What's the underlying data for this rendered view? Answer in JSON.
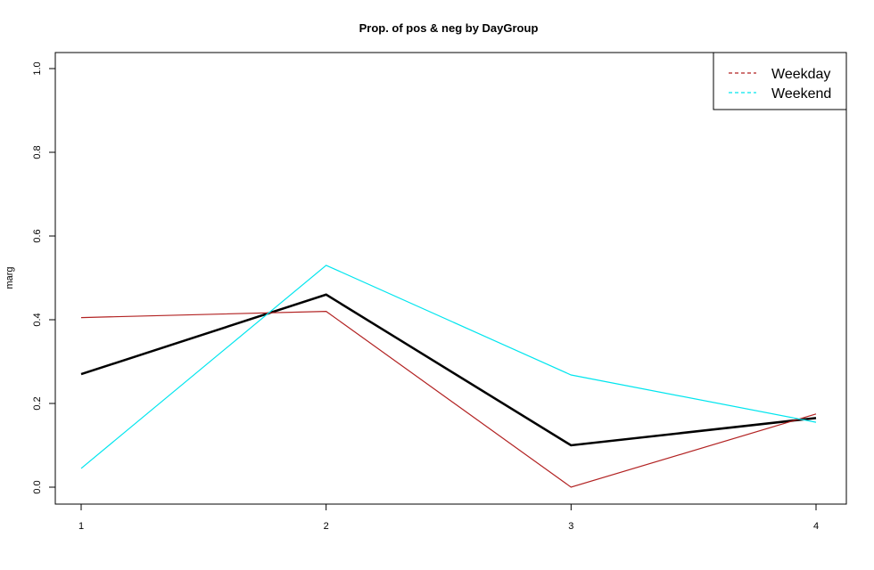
{
  "chart_data": {
    "type": "line",
    "title": "Prop. of pos & neg by DayGroup",
    "xlabel": "",
    "ylabel": "marg",
    "x": [
      1,
      2,
      3,
      4
    ],
    "x_ticks": [
      "1",
      "2",
      "3",
      "4"
    ],
    "xlim": [
      0.9,
      4.1
    ],
    "ylim": [
      -0.04,
      1.04
    ],
    "y_ticks": [
      "0.0",
      "0.2",
      "0.4",
      "0.6",
      "0.8",
      "1.0"
    ],
    "y_tick_values": [
      0,
      0.2,
      0.4,
      0.6,
      0.8,
      1.0
    ],
    "grid": false,
    "legend_position": "top-right",
    "series": [
      {
        "name": "",
        "color": "#000000",
        "style": "solid-thick",
        "in_legend": false,
        "values": [
          0.27,
          0.46,
          0.1,
          0.165
        ]
      },
      {
        "name": "Weekday",
        "color": "#B22222",
        "style": "solid",
        "in_legend": true,
        "values": [
          0.405,
          0.42,
          0.0,
          0.175
        ]
      },
      {
        "name": "Weekend",
        "color": "#00E5EE",
        "style": "solid",
        "in_legend": true,
        "values": [
          0.045,
          0.53,
          0.268,
          0.155
        ]
      }
    ]
  }
}
